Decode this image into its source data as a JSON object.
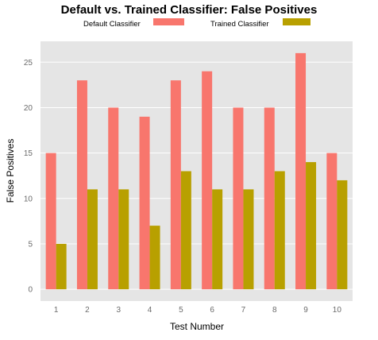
{
  "chart_data": {
    "type": "bar",
    "title": "Default vs. Trained Classifier: False Positives",
    "xlabel": "Test Number",
    "ylabel": "False Positives",
    "categories": [
      "1",
      "2",
      "3",
      "4",
      "5",
      "6",
      "7",
      "8",
      "9",
      "10"
    ],
    "series": [
      {
        "name": "Default Classifier",
        "color": "#f8766d",
        "values": [
          15,
          23,
          20,
          19,
          23,
          24,
          20,
          20,
          26,
          15
        ]
      },
      {
        "name": "Trained Classifier",
        "color": "#b8a000",
        "values": [
          5,
          11,
          11,
          7,
          13,
          11,
          11,
          13,
          14,
          12
        ]
      }
    ],
    "ylim": [
      -1.3,
      27.3
    ],
    "yticks": [
      0,
      5,
      10,
      15,
      20,
      25
    ],
    "grid": true,
    "background": "#e5e5e5",
    "gridline_color": "#ffffff",
    "legend_position": "top"
  }
}
